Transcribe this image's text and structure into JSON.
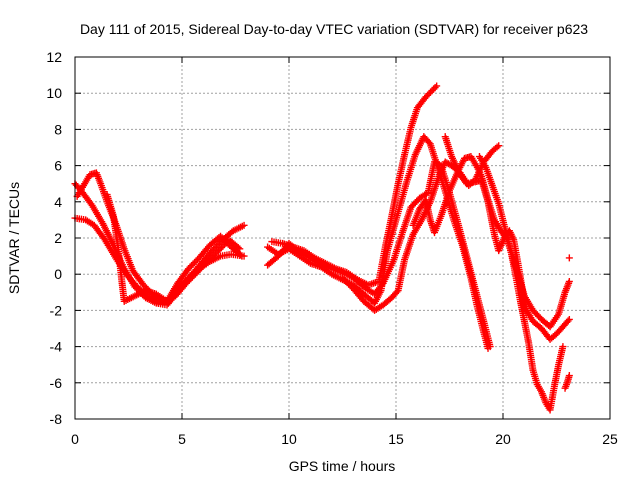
{
  "chart_data": {
    "type": "scatter",
    "title": "Day 111 of 2015, Sidereal Day-to-day VTEC variation (SDTVAR) for receiver p623",
    "xlabel": "GPS time / hours",
    "ylabel": "SDTVAR / TECUs",
    "xlim": [
      0,
      25
    ],
    "ylim": [
      -8,
      12
    ],
    "xticks": [
      0,
      5,
      10,
      15,
      20,
      25
    ],
    "yticks": [
      -8,
      -6,
      -4,
      -2,
      0,
      2,
      4,
      6,
      8,
      10,
      12
    ],
    "grid": true,
    "legend": "none",
    "marker": "+",
    "color": "#ff0000",
    "series": [
      {
        "name": "s1",
        "points": [
          [
            0,
            5.0
          ],
          [
            0.3,
            4.6
          ],
          [
            0.8,
            3.8
          ],
          [
            1.3,
            2.8
          ],
          [
            1.8,
            1.6
          ],
          [
            2.3,
            0.3
          ],
          [
            2.8,
            -0.7
          ],
          [
            3.3,
            -1.3
          ],
          [
            3.8,
            -1.6
          ],
          [
            4.3,
            -1.7
          ],
          [
            4.8,
            -1.0
          ],
          [
            5.3,
            -0.2
          ],
          [
            5.8,
            0.3
          ],
          [
            6.3,
            0.7
          ],
          [
            6.8,
            1.0
          ],
          [
            7.3,
            1.1
          ],
          [
            7.9,
            1.0
          ]
        ]
      },
      {
        "name": "s2",
        "points": [
          [
            0,
            3.1
          ],
          [
            0.5,
            3.0
          ],
          [
            0.9,
            2.7
          ],
          [
            1.4,
            1.9
          ],
          [
            1.9,
            0.9
          ],
          [
            2.4,
            0.0
          ],
          [
            2.9,
            -0.7
          ],
          [
            3.4,
            -1.2
          ],
          [
            3.9,
            -1.6
          ],
          [
            4.4,
            -1.5
          ],
          [
            4.9,
            -0.7
          ],
          [
            5.4,
            -0.1
          ],
          [
            5.9,
            0.6
          ],
          [
            6.4,
            1.3
          ],
          [
            6.9,
            1.9
          ],
          [
            7.4,
            2.4
          ],
          [
            7.9,
            2.7
          ]
        ]
      },
      {
        "name": "s3",
        "points": [
          [
            0.1,
            4.3
          ],
          [
            0.4,
            4.9
          ],
          [
            0.7,
            5.5
          ],
          [
            1.0,
            5.6
          ],
          [
            1.2,
            5.0
          ],
          [
            1.5,
            4.0
          ],
          [
            1.9,
            2.8
          ],
          [
            2.3,
            1.4
          ],
          [
            2.7,
            0.2
          ],
          [
            3.2,
            -0.6
          ],
          [
            3.7,
            -1.2
          ],
          [
            4.2,
            -1.5
          ],
          [
            4.7,
            -1.2
          ],
          [
            5.2,
            -0.5
          ],
          [
            5.7,
            0.1
          ],
          [
            6.2,
            0.7
          ],
          [
            6.7,
            1.3
          ],
          [
            7.2,
            1.9
          ],
          [
            7.7,
            1.4
          ]
        ]
      },
      {
        "name": "s4",
        "points": [
          [
            1.5,
            4.4
          ],
          [
            1.8,
            3.2
          ],
          [
            2.0,
            1.6
          ],
          [
            2.2,
            -0.5
          ],
          [
            2.3,
            -1.5
          ],
          [
            2.8,
            -1.2
          ],
          [
            3.3,
            -0.9
          ],
          [
            3.8,
            -1.1
          ],
          [
            4.3,
            -1.5
          ],
          [
            4.8,
            -0.5
          ],
          [
            5.3,
            0.3
          ],
          [
            5.8,
            0.9
          ],
          [
            6.3,
            1.6
          ],
          [
            6.8,
            2.1
          ],
          [
            7.3,
            1.5
          ],
          [
            7.8,
            1.0
          ]
        ]
      },
      {
        "name": "s5",
        "points": [
          [
            9.2,
            1.8
          ],
          [
            9.7,
            1.7
          ],
          [
            10.2,
            1.5
          ],
          [
            10.7,
            1.3
          ],
          [
            11.2,
            0.9
          ],
          [
            11.7,
            0.6
          ],
          [
            12.2,
            0.3
          ],
          [
            12.7,
            0.1
          ],
          [
            13.2,
            -0.3
          ],
          [
            13.7,
            -0.6
          ],
          [
            14.2,
            -0.4
          ],
          [
            14.5,
            1.5
          ],
          [
            14.8,
            3.2
          ],
          [
            15.1,
            5.0
          ],
          [
            15.4,
            6.6
          ],
          [
            15.7,
            8.1
          ],
          [
            16.0,
            9.2
          ],
          [
            16.4,
            9.8
          ],
          [
            16.9,
            10.4
          ]
        ]
      },
      {
        "name": "s6",
        "points": [
          [
            9.0,
            1.5
          ],
          [
            9.5,
            1.1
          ],
          [
            10.0,
            1.4
          ],
          [
            10.5,
            1.0
          ],
          [
            11.0,
            0.6
          ],
          [
            11.5,
            0.4
          ],
          [
            12.0,
            0.0
          ],
          [
            12.5,
            -0.3
          ],
          [
            13.0,
            -0.6
          ],
          [
            13.5,
            -1.1
          ],
          [
            14.0,
            -1.6
          ],
          [
            14.3,
            -0.9
          ],
          [
            14.6,
            1.3
          ],
          [
            15.0,
            3.0
          ],
          [
            15.5,
            5.1
          ],
          [
            15.9,
            6.6
          ],
          [
            16.3,
            7.6
          ],
          [
            16.6,
            7.2
          ],
          [
            16.9,
            6.1
          ],
          [
            17.3,
            4.6
          ],
          [
            17.7,
            3.0
          ],
          [
            18.1,
            1.6
          ],
          [
            18.5,
            -0.2
          ],
          [
            18.8,
            -1.8
          ],
          [
            19.1,
            -3.2
          ],
          [
            19.3,
            -4.1
          ]
        ]
      },
      {
        "name": "s7",
        "points": [
          [
            9.0,
            0.5
          ],
          [
            9.5,
            1.0
          ],
          [
            10.0,
            1.7
          ],
          [
            10.5,
            1.2
          ],
          [
            11.0,
            0.9
          ],
          [
            11.5,
            0.5
          ],
          [
            12.0,
            0.3
          ],
          [
            12.5,
            0.1
          ],
          [
            13.0,
            -0.2
          ],
          [
            13.5,
            -0.7
          ],
          [
            14.0,
            -1.1
          ],
          [
            14.4,
            -0.5
          ],
          [
            14.9,
            0.8
          ],
          [
            15.3,
            2.3
          ],
          [
            15.7,
            3.7
          ],
          [
            16.1,
            4.2
          ],
          [
            16.5,
            4.5
          ],
          [
            16.8,
            6.2
          ],
          [
            17.1,
            6.0
          ],
          [
            17.5,
            4.5
          ],
          [
            17.9,
            2.8
          ],
          [
            18.3,
            1.0
          ],
          [
            18.7,
            -0.8
          ],
          [
            19.1,
            -2.6
          ],
          [
            19.4,
            -4.0
          ]
        ]
      },
      {
        "name": "s8",
        "points": [
          [
            12.5,
            -0.2
          ],
          [
            13.0,
            -0.8
          ],
          [
            13.5,
            -1.5
          ],
          [
            14.0,
            -2.0
          ],
          [
            14.4,
            -1.7
          ],
          [
            14.8,
            -1.3
          ],
          [
            15.1,
            -0.9
          ],
          [
            15.4,
            0.8
          ],
          [
            15.8,
            2.2
          ],
          [
            16.2,
            3.0
          ],
          [
            16.6,
            4.0
          ],
          [
            17.0,
            5.4
          ],
          [
            17.3,
            6.2
          ],
          [
            17.6,
            6.0
          ],
          [
            18.0,
            5.6
          ],
          [
            18.4,
            4.9
          ],
          [
            18.7,
            5.2
          ],
          [
            19.1,
            6.2
          ],
          [
            19.5,
            6.8
          ],
          [
            19.8,
            7.1
          ]
        ]
      },
      {
        "name": "s9",
        "points": [
          [
            15.8,
            2.7
          ],
          [
            16.1,
            3.6
          ],
          [
            16.4,
            4.1
          ],
          [
            16.6,
            3.0
          ],
          [
            16.8,
            2.3
          ],
          [
            17.1,
            3.2
          ],
          [
            17.5,
            4.6
          ],
          [
            17.9,
            5.7
          ],
          [
            18.2,
            6.4
          ],
          [
            18.5,
            6.5
          ],
          [
            18.8,
            5.9
          ],
          [
            19.0,
            5.4
          ],
          [
            19.3,
            4.1
          ],
          [
            19.6,
            3.0
          ],
          [
            19.9,
            2.4
          ],
          [
            20.2,
            1.9
          ],
          [
            20.6,
            0.4
          ],
          [
            21.0,
            -1.2
          ],
          [
            21.4,
            -2.0
          ],
          [
            21.8,
            -2.5
          ],
          [
            22.2,
            -2.9
          ],
          [
            22.6,
            -2.2
          ],
          [
            22.9,
            -1.0
          ],
          [
            23.1,
            -0.4
          ]
        ]
      },
      {
        "name": "s10",
        "points": [
          [
            17.3,
            7.6
          ],
          [
            17.6,
            6.5
          ],
          [
            18.0,
            5.5
          ],
          [
            18.3,
            5.0
          ],
          [
            18.7,
            5.1
          ],
          [
            19.0,
            5.2
          ],
          [
            19.3,
            4.0
          ],
          [
            19.6,
            2.2
          ],
          [
            19.8,
            1.3
          ],
          [
            20.1,
            2.1
          ],
          [
            20.3,
            2.4
          ],
          [
            20.5,
            1.9
          ],
          [
            20.7,
            0.6
          ],
          [
            20.9,
            -0.8
          ],
          [
            21.1,
            -2.0
          ],
          [
            21.4,
            -2.6
          ],
          [
            21.8,
            -3.0
          ],
          [
            22.2,
            -3.6
          ],
          [
            22.5,
            -3.3
          ],
          [
            22.8,
            -2.9
          ],
          [
            23.1,
            -2.5
          ]
        ]
      },
      {
        "name": "s11",
        "points": [
          [
            18.9,
            6.5
          ],
          [
            19.2,
            5.9
          ],
          [
            19.5,
            4.9
          ],
          [
            19.8,
            3.9
          ],
          [
            20.1,
            2.5
          ],
          [
            20.4,
            1.1
          ],
          [
            20.6,
            -0.1
          ],
          [
            20.8,
            -1.4
          ],
          [
            21.0,
            -2.6
          ],
          [
            21.2,
            -3.8
          ],
          [
            21.4,
            -5.3
          ],
          [
            21.6,
            -6.1
          ],
          [
            21.8,
            -6.5
          ],
          [
            22.0,
            -7.1
          ],
          [
            22.2,
            -7.5
          ],
          [
            22.4,
            -6.2
          ],
          [
            22.6,
            -5.0
          ],
          [
            22.8,
            -4.0
          ]
        ]
      },
      {
        "name": "s12",
        "points": [
          [
            22.9,
            -6.3
          ],
          [
            23.0,
            -6.0
          ],
          [
            23.1,
            -5.6
          ],
          [
            23.1,
            0.9
          ]
        ]
      }
    ]
  }
}
